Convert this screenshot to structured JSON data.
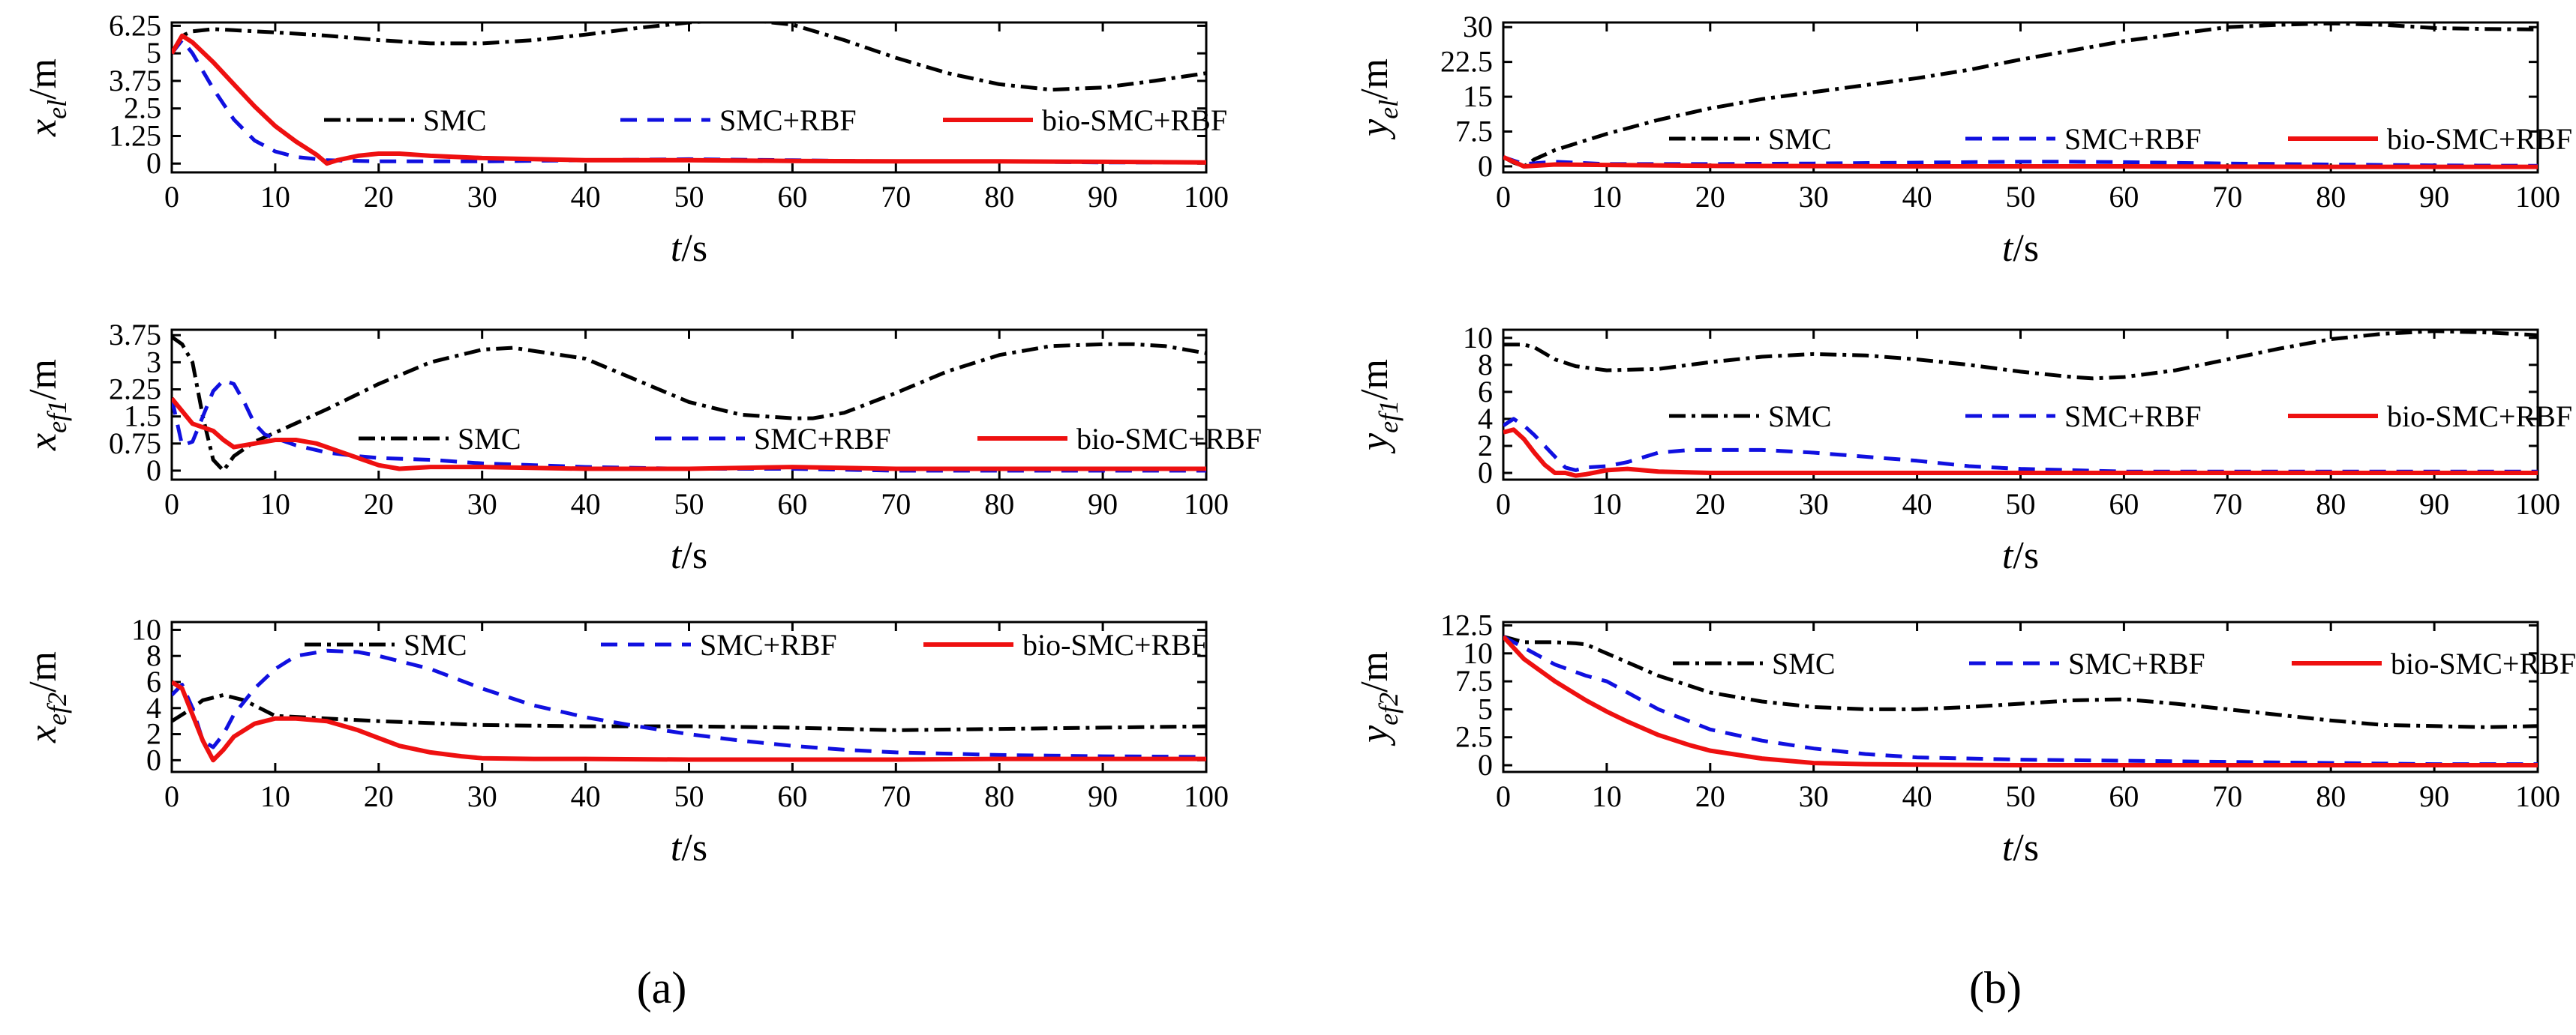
{
  "panel_labels": [
    "(a)",
    "(b)"
  ],
  "legend_labels": [
    "SMC",
    "SMC+RBF",
    "bio-SMC+RBF"
  ],
  "series_colors": {
    "SMC": "#000000",
    "SMC+RBF": "#1010e0",
    "bio-SMC+RBF": "#ee1010"
  },
  "x_axis": {
    "var": "t",
    "unit": "s",
    "ticks": [
      "0",
      "10",
      "20",
      "30",
      "40",
      "50",
      "60",
      "70",
      "80",
      "90",
      "100"
    ]
  },
  "chart_data": [
    {
      "type": "line",
      "panel": "a",
      "ylabel": {
        "var": "x",
        "sub": "el",
        "unit": "m"
      },
      "xlabel": "t/s",
      "xlim": [
        0,
        100
      ],
      "ylim": [
        -0.4,
        6.4
      ],
      "yticks": [
        0,
        1.25,
        2.5,
        3.75,
        5,
        6.25
      ],
      "ytick_labels": [
        "0",
        "1.25",
        "2.5",
        "3.75",
        "5",
        "6.25"
      ],
      "series": [
        {
          "name": "SMC",
          "x": [
            0,
            1,
            2,
            4,
            6,
            10,
            15,
            20,
            25,
            30,
            35,
            40,
            45,
            50,
            55,
            60,
            65,
            70,
            75,
            80,
            85,
            90,
            95,
            100
          ],
          "y": [
            5.0,
            5.8,
            6.0,
            6.1,
            6.05,
            5.95,
            5.8,
            5.6,
            5.45,
            5.45,
            5.6,
            5.85,
            6.15,
            6.4,
            6.55,
            6.3,
            5.6,
            4.8,
            4.1,
            3.6,
            3.35,
            3.45,
            3.75,
            4.1
          ]
        },
        {
          "name": "SMC+RBF",
          "x": [
            0,
            1,
            2,
            4,
            6,
            8,
            10,
            12,
            15,
            20,
            30,
            40,
            50,
            60,
            70,
            80,
            90,
            100
          ],
          "y": [
            5.0,
            5.6,
            5.0,
            3.4,
            2.0,
            1.05,
            0.55,
            0.3,
            0.15,
            0.1,
            0.1,
            0.15,
            0.2,
            0.15,
            0.1,
            0.1,
            0.05,
            0.05
          ]
        },
        {
          "name": "bio-SMC+RBF",
          "x": [
            0,
            1,
            2,
            4,
            6,
            8,
            10,
            12,
            14,
            15,
            16,
            18,
            20,
            22,
            25,
            30,
            40,
            50,
            60,
            70,
            80,
            90,
            100
          ],
          "y": [
            5.0,
            5.8,
            5.5,
            4.6,
            3.6,
            2.6,
            1.7,
            1.0,
            0.4,
            0.0,
            0.15,
            0.35,
            0.45,
            0.45,
            0.35,
            0.25,
            0.15,
            0.15,
            0.12,
            0.1,
            0.1,
            0.08,
            0.05
          ]
        }
      ]
    },
    {
      "type": "line",
      "panel": "a",
      "ylabel": {
        "var": "x",
        "sub": "ef1",
        "unit": "m"
      },
      "xlabel": "t/s",
      "xlim": [
        0,
        100
      ],
      "ylim": [
        -0.25,
        3.9
      ],
      "yticks": [
        0,
        0.75,
        1.5,
        2.25,
        3,
        3.75
      ],
      "ytick_labels": [
        "0",
        "0.75",
        "1.5",
        "2.25",
        "3",
        "3.75"
      ],
      "series": [
        {
          "name": "SMC",
          "x": [
            0,
            1,
            2,
            3,
            4,
            5,
            6,
            8,
            10,
            15,
            20,
            25,
            30,
            33,
            40,
            45,
            50,
            55,
            60,
            62,
            65,
            70,
            75,
            80,
            85,
            90,
            93,
            96,
            100
          ],
          "y": [
            3.7,
            3.5,
            3.0,
            1.5,
            0.3,
            0.0,
            0.4,
            0.8,
            1.05,
            1.7,
            2.4,
            3.0,
            3.35,
            3.4,
            3.1,
            2.5,
            1.9,
            1.55,
            1.45,
            1.45,
            1.6,
            2.15,
            2.75,
            3.2,
            3.45,
            3.5,
            3.5,
            3.45,
            3.25
          ]
        },
        {
          "name": "SMC+RBF",
          "x": [
            0,
            1,
            2,
            3,
            4,
            5,
            6,
            7,
            8,
            9,
            10,
            12,
            15,
            18,
            20,
            25,
            30,
            40,
            50,
            60,
            70,
            80,
            90,
            100
          ],
          "y": [
            2.0,
            0.7,
            0.8,
            1.5,
            2.2,
            2.5,
            2.4,
            1.9,
            1.3,
            1.0,
            0.9,
            0.7,
            0.5,
            0.4,
            0.35,
            0.3,
            0.2,
            0.1,
            0.05,
            0.05,
            0.0,
            0.0,
            0.0,
            0.0
          ]
        },
        {
          "name": "bio-SMC+RBF",
          "x": [
            0,
            2,
            4,
            5,
            6,
            8,
            10,
            12,
            14,
            16,
            18,
            20,
            22,
            25,
            30,
            40,
            50,
            60,
            70,
            80,
            90,
            100
          ],
          "y": [
            2.0,
            1.3,
            1.1,
            0.85,
            0.65,
            0.75,
            0.85,
            0.85,
            0.75,
            0.55,
            0.35,
            0.15,
            0.05,
            0.1,
            0.1,
            0.05,
            0.05,
            0.1,
            0.05,
            0.05,
            0.05,
            0.05
          ]
        }
      ]
    },
    {
      "type": "line",
      "panel": "a",
      "ylabel": {
        "var": "x",
        "sub": "ef2",
        "unit": "m"
      },
      "xlabel": "t/s",
      "xlim": [
        0,
        100
      ],
      "ylim": [
        -0.9,
        10.6
      ],
      "yticks": [
        0,
        2,
        4,
        6,
        8,
        10
      ],
      "ytick_labels": [
        "0",
        "2",
        "4",
        "6",
        "8",
        "10"
      ],
      "series": [
        {
          "name": "SMC",
          "x": [
            0,
            2,
            3,
            5,
            7,
            10,
            15,
            20,
            30,
            40,
            50,
            60,
            70,
            80,
            90,
            100
          ],
          "y": [
            3.0,
            4.0,
            4.6,
            5.0,
            4.6,
            3.4,
            3.2,
            3.0,
            2.7,
            2.6,
            2.6,
            2.5,
            2.3,
            2.4,
            2.5,
            2.6
          ]
        },
        {
          "name": "SMC+RBF",
          "x": [
            0,
            1,
            2,
            3,
            4,
            5,
            6,
            8,
            10,
            12,
            15,
            18,
            20,
            25,
            30,
            35,
            40,
            45,
            50,
            55,
            60,
            65,
            70,
            80,
            90,
            100
          ],
          "y": [
            5.0,
            5.8,
            4.0,
            1.5,
            1.0,
            2.0,
            3.5,
            5.5,
            7.0,
            8.0,
            8.4,
            8.3,
            8.0,
            7.0,
            5.5,
            4.2,
            3.3,
            2.6,
            2.0,
            1.5,
            1.1,
            0.8,
            0.6,
            0.4,
            0.3,
            0.25
          ]
        },
        {
          "name": "bio-SMC+RBF",
          "x": [
            0,
            1,
            2,
            3,
            4,
            5,
            6,
            8,
            10,
            12,
            15,
            18,
            20,
            22,
            25,
            28,
            30,
            35,
            40,
            50,
            60,
            70,
            80,
            90,
            100
          ],
          "y": [
            6.0,
            5.5,
            3.5,
            1.5,
            0.0,
            0.8,
            1.8,
            2.8,
            3.2,
            3.2,
            3.0,
            2.3,
            1.7,
            1.1,
            0.6,
            0.3,
            0.15,
            0.1,
            0.1,
            0.05,
            0.05,
            0.05,
            0.1,
            0.1,
            0.1
          ]
        }
      ]
    },
    {
      "type": "line",
      "panel": "b",
      "ylabel": {
        "var": "y",
        "sub": "el",
        "unit": "m"
      },
      "xlabel": "t/s",
      "xlim": [
        0,
        100
      ],
      "ylim": [
        -1.3,
        31.0
      ],
      "yticks": [
        0,
        7.5,
        15,
        22.5,
        30
      ],
      "ytick_labels": [
        "0",
        "7.5",
        "15",
        "22.5",
        "30"
      ],
      "series": [
        {
          "name": "SMC",
          "x": [
            0,
            1,
            2,
            3,
            5,
            10,
            15,
            20,
            25,
            30,
            35,
            40,
            45,
            50,
            55,
            60,
            65,
            70,
            75,
            80,
            85,
            90,
            95,
            100
          ],
          "y": [
            2.0,
            0.8,
            0.0,
            1.5,
            3.5,
            7.0,
            10.0,
            12.5,
            14.5,
            16.0,
            17.5,
            19.0,
            20.8,
            23.0,
            25.0,
            27.0,
            28.5,
            30.0,
            30.5,
            30.8,
            30.5,
            29.8,
            29.6,
            29.5
          ]
        },
        {
          "name": "SMC+RBF",
          "x": [
            0,
            2,
            5,
            10,
            20,
            30,
            40,
            50,
            55,
            60,
            70,
            80,
            90,
            100
          ],
          "y": [
            2.0,
            0.5,
            1.0,
            0.5,
            0.5,
            0.6,
            0.8,
            1.0,
            1.0,
            0.9,
            0.6,
            0.4,
            0.2,
            0.1
          ]
        },
        {
          "name": "bio-SMC+RBF",
          "x": [
            0,
            2,
            5,
            10,
            20,
            40,
            60,
            80,
            100
          ],
          "y": [
            2.0,
            0.0,
            0.4,
            0.3,
            0.1,
            0.0,
            0.0,
            -0.1,
            -0.1
          ]
        }
      ]
    },
    {
      "type": "line",
      "panel": "b",
      "ylabel": {
        "var": "y",
        "sub": "ef1",
        "unit": "m"
      },
      "xlabel": "t/s",
      "xlim": [
        0,
        100
      ],
      "ylim": [
        -0.5,
        10.6
      ],
      "yticks": [
        0,
        2,
        4,
        6,
        8,
        10
      ],
      "ytick_labels": [
        "0",
        "2",
        "4",
        "6",
        "8",
        "10"
      ],
      "series": [
        {
          "name": "SMC",
          "x": [
            0,
            2,
            3,
            5,
            7,
            10,
            15,
            20,
            25,
            30,
            35,
            40,
            45,
            50,
            55,
            57,
            60,
            65,
            70,
            75,
            80,
            85,
            90,
            95,
            100
          ],
          "y": [
            9.5,
            9.5,
            9.3,
            8.4,
            7.9,
            7.6,
            7.7,
            8.2,
            8.6,
            8.8,
            8.7,
            8.4,
            8.0,
            7.5,
            7.1,
            7.0,
            7.1,
            7.6,
            8.4,
            9.2,
            9.9,
            10.3,
            10.5,
            10.4,
            10.2
          ]
        },
        {
          "name": "SMC+RBF",
          "x": [
            0,
            1,
            2,
            3,
            4,
            5,
            6,
            7,
            8,
            10,
            12,
            15,
            18,
            20,
            25,
            30,
            35,
            40,
            45,
            50,
            55,
            60,
            70,
            80,
            90,
            100
          ],
          "y": [
            3.5,
            4.0,
            3.5,
            2.8,
            2.0,
            1.2,
            0.4,
            0.2,
            0.4,
            0.5,
            0.8,
            1.5,
            1.7,
            1.7,
            1.7,
            1.5,
            1.2,
            0.9,
            0.5,
            0.3,
            0.2,
            0.1,
            0.1,
            0.1,
            0.1,
            0.1
          ]
        },
        {
          "name": "bio-SMC+RBF",
          "x": [
            0,
            1,
            2,
            3,
            4,
            5,
            6,
            7,
            8,
            10,
            12,
            15,
            20,
            30,
            40,
            50,
            60,
            70,
            80,
            90,
            100
          ],
          "y": [
            3.0,
            3.2,
            2.5,
            1.5,
            0.6,
            0.0,
            0.0,
            -0.2,
            -0.1,
            0.2,
            0.3,
            0.1,
            0.0,
            0.0,
            0.0,
            0.0,
            0.0,
            0.0,
            0.0,
            0.0,
            0.0
          ]
        }
      ]
    },
    {
      "type": "line",
      "panel": "b",
      "ylabel": {
        "var": "y",
        "sub": "ef2",
        "unit": "m"
      },
      "xlabel": "t/s",
      "xlim": [
        0,
        100
      ],
      "ylim": [
        -0.6,
        12.8
      ],
      "yticks": [
        0,
        2.5,
        5,
        7.5,
        10,
        12.5
      ],
      "ytick_labels": [
        "0",
        "2.5",
        "5",
        "7.5",
        "10",
        "12.5"
      ],
      "series": [
        {
          "name": "SMC",
          "x": [
            0,
            2,
            5,
            7,
            8,
            10,
            15,
            20,
            25,
            30,
            35,
            40,
            45,
            50,
            55,
            60,
            65,
            70,
            75,
            80,
            85,
            90,
            95,
            100
          ],
          "y": [
            11.5,
            11.0,
            11.0,
            10.9,
            10.8,
            10.0,
            8.0,
            6.5,
            5.7,
            5.2,
            5.0,
            5.0,
            5.2,
            5.5,
            5.8,
            5.9,
            5.5,
            5.0,
            4.5,
            4.0,
            3.6,
            3.5,
            3.4,
            3.5
          ]
        },
        {
          "name": "SMC+RBF",
          "x": [
            0,
            2,
            5,
            8,
            10,
            12,
            15,
            20,
            25,
            30,
            35,
            40,
            50,
            60,
            70,
            80,
            90,
            100
          ],
          "y": [
            11.5,
            10.5,
            9.0,
            8.0,
            7.5,
            6.5,
            5.0,
            3.2,
            2.2,
            1.5,
            1.0,
            0.7,
            0.5,
            0.4,
            0.3,
            0.2,
            0.1,
            0.1
          ]
        },
        {
          "name": "bio-SMC+RBF",
          "x": [
            0,
            2,
            5,
            8,
            10,
            12,
            15,
            18,
            20,
            25,
            30,
            35,
            40,
            50,
            60,
            80,
            100
          ],
          "y": [
            11.5,
            9.5,
            7.5,
            5.8,
            4.8,
            3.9,
            2.7,
            1.8,
            1.3,
            0.6,
            0.2,
            0.1,
            0.05,
            0.0,
            0.0,
            0.0,
            0.0
          ]
        }
      ]
    }
  ]
}
